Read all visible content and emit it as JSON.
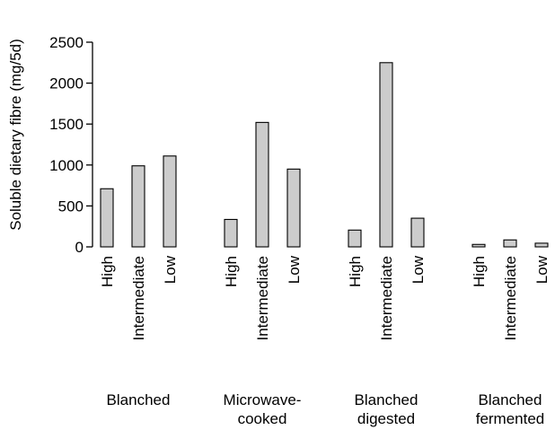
{
  "chart_data": {
    "type": "bar",
    "ylabel": "Soluble dietary fibre (mg/5d)",
    "xlabel": "",
    "ylim": [
      0,
      2500
    ],
    "yticks": [
      "0",
      "500",
      "1000",
      "1500",
      "2000",
      "2500"
    ],
    "subcategories": [
      "High",
      "Intermediate",
      "Low"
    ],
    "groups": [
      {
        "label_lines": [
          "Blanched"
        ],
        "values": [
          710,
          990,
          1110
        ]
      },
      {
        "label_lines": [
          "Microwave-",
          "cooked"
        ],
        "values": [
          335,
          1520,
          950
        ]
      },
      {
        "label_lines": [
          "Blanched",
          "digested"
        ],
        "values": [
          205,
          2250,
          350
        ]
      },
      {
        "label_lines": [
          "Blanched",
          "fermented"
        ],
        "values": [
          30,
          85,
          45
        ]
      }
    ],
    "grid": false,
    "legend": "none",
    "bar_color": "#cccccc",
    "edge_color": "#000000"
  }
}
